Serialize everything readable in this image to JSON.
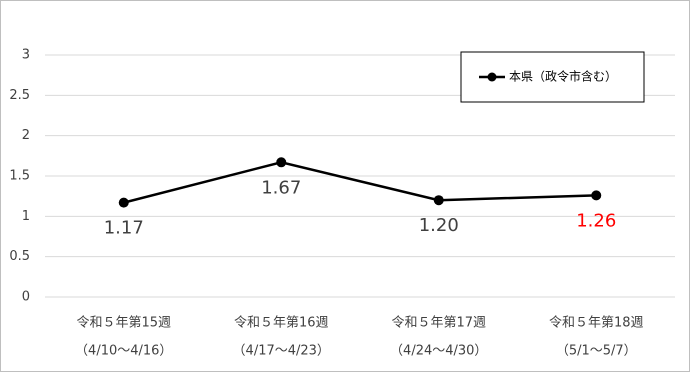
{
  "chart_data": {
    "type": "line",
    "categories": [
      [
        "令和５年第15週",
        "（4/10～4/16）"
      ],
      [
        "令和５年第16週",
        "（4/17～4/23）"
      ],
      [
        "令和５年第17週",
        "（4/24～4/30）"
      ],
      [
        "令和５年第18週",
        "（5/1～5/7）"
      ]
    ],
    "series": [
      {
        "name": "本県（政令市含む）",
        "color": "#000000",
        "values": [
          1.17,
          1.67,
          1.2,
          1.26
        ],
        "value_labels": [
          "1.17",
          "1.67",
          "1.20",
          "1.26"
        ],
        "value_label_colors": [
          "#404040",
          "#404040",
          "#404040",
          "#ff0000"
        ]
      }
    ],
    "ylim": [
      0,
      3
    ],
    "yticks": [
      0,
      0.5,
      1,
      1.5,
      2,
      2.5,
      3
    ],
    "grid": true,
    "legend": "upper right"
  }
}
